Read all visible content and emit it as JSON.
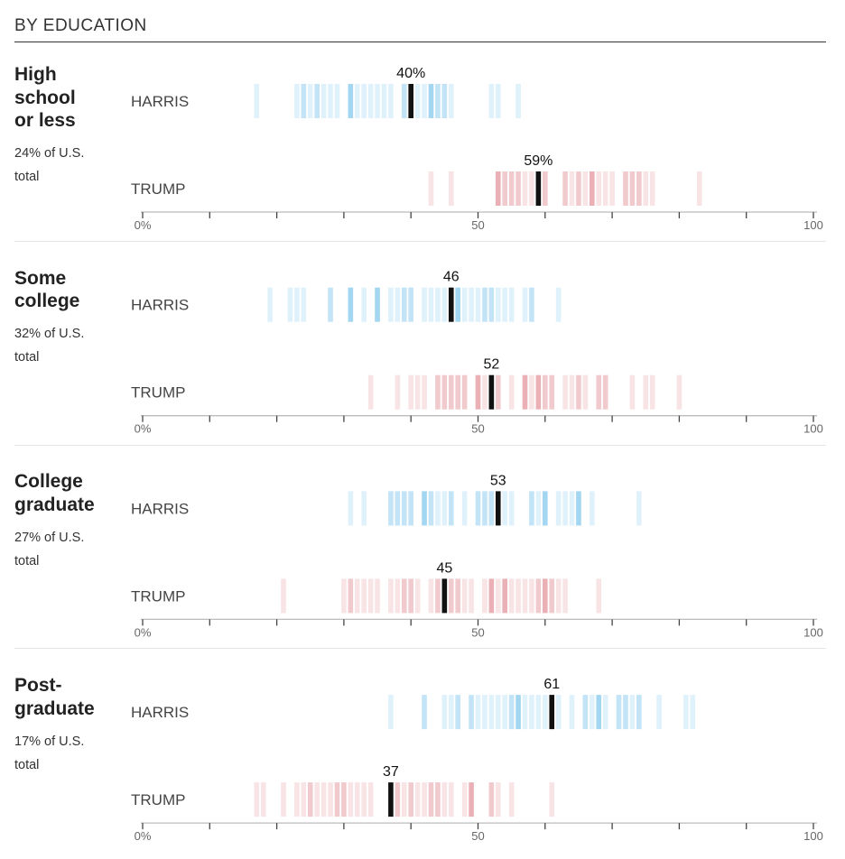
{
  "title": "BY EDUCATION",
  "colors": {
    "harris": "#78c3eb",
    "trump": "#e08a92",
    "highlight": "#111111",
    "axis": "#bbbbbb"
  },
  "chart_data": {
    "type": "strip",
    "title": "BY EDUCATION",
    "xlim": [
      0,
      100
    ],
    "xticks": [
      0,
      10,
      20,
      30,
      40,
      50,
      60,
      70,
      80,
      90,
      100
    ],
    "xtick_labels": [
      {
        "value": 0,
        "label": "0%"
      },
      {
        "value": 50,
        "label": "50"
      },
      {
        "value": 100,
        "label": "100"
      }
    ],
    "groups": [
      {
        "label_lines": [
          "High",
          "school",
          "or less"
        ],
        "share_lines": [
          "24% of U.S.",
          "total"
        ],
        "series": [
          {
            "name": "HARRIS",
            "value": 40,
            "value_label": "40%",
            "bars": [
              [
                17,
                1
              ],
              [
                23,
                1
              ],
              [
                24,
                2
              ],
              [
                25,
                1
              ],
              [
                26,
                2
              ],
              [
                27,
                1
              ],
              [
                28,
                1
              ],
              [
                29,
                1
              ],
              [
                31,
                3
              ],
              [
                32,
                1
              ],
              [
                33,
                1
              ],
              [
                34,
                1
              ],
              [
                35,
                1
              ],
              [
                36,
                1
              ],
              [
                37,
                1
              ],
              [
                39,
                2
              ],
              [
                41,
                1
              ],
              [
                42,
                1
              ],
              [
                43,
                3
              ],
              [
                44,
                2
              ],
              [
                45,
                2
              ],
              [
                46,
                1
              ],
              [
                52,
                1
              ],
              [
                53,
                1
              ],
              [
                56,
                1
              ]
            ]
          },
          {
            "name": "TRUMP",
            "value": 59,
            "value_label": "59%",
            "bars": [
              [
                43,
                1
              ],
              [
                46,
                1
              ],
              [
                53,
                3
              ],
              [
                54,
                2
              ],
              [
                55,
                2
              ],
              [
                56,
                2
              ],
              [
                57,
                1
              ],
              [
                58,
                1
              ],
              [
                60,
                2
              ],
              [
                63,
                2
              ],
              [
                64,
                1
              ],
              [
                65,
                2
              ],
              [
                66,
                1
              ],
              [
                67,
                3
              ],
              [
                68,
                1
              ],
              [
                69,
                1
              ],
              [
                70,
                1
              ],
              [
                72,
                2
              ],
              [
                73,
                2
              ],
              [
                74,
                2
              ],
              [
                75,
                1
              ],
              [
                76,
                1
              ],
              [
                83,
                1
              ]
            ]
          }
        ]
      },
      {
        "label_lines": [
          "Some",
          "college"
        ],
        "share_lines": [
          "32% of U.S.",
          "total"
        ],
        "series": [
          {
            "name": "HARRIS",
            "value": 46,
            "value_label": "46",
            "bars": [
              [
                19,
                1
              ],
              [
                22,
                1
              ],
              [
                23,
                1
              ],
              [
                24,
                1
              ],
              [
                28,
                2
              ],
              [
                31,
                3
              ],
              [
                33,
                1
              ],
              [
                35,
                3
              ],
              [
                37,
                1
              ],
              [
                38,
                1
              ],
              [
                39,
                2
              ],
              [
                40,
                2
              ],
              [
                42,
                1
              ],
              [
                43,
                1
              ],
              [
                44,
                1
              ],
              [
                45,
                1
              ],
              [
                47,
                3
              ],
              [
                48,
                1
              ],
              [
                49,
                1
              ],
              [
                50,
                1
              ],
              [
                51,
                2
              ],
              [
                52,
                2
              ],
              [
                53,
                1
              ],
              [
                54,
                1
              ],
              [
                55,
                1
              ],
              [
                57,
                1
              ],
              [
                58,
                2
              ],
              [
                62,
                1
              ]
            ]
          },
          {
            "name": "TRUMP",
            "value": 52,
            "value_label": "52",
            "bars": [
              [
                34,
                1
              ],
              [
                38,
                1
              ],
              [
                40,
                1
              ],
              [
                41,
                1
              ],
              [
                42,
                1
              ],
              [
                44,
                2
              ],
              [
                45,
                2
              ],
              [
                46,
                2
              ],
              [
                47,
                2
              ],
              [
                48,
                2
              ],
              [
                50,
                3
              ],
              [
                51,
                1
              ],
              [
                53,
                2
              ],
              [
                55,
                1
              ],
              [
                57,
                3
              ],
              [
                58,
                1
              ],
              [
                59,
                3
              ],
              [
                60,
                2
              ],
              [
                61,
                2
              ],
              [
                63,
                1
              ],
              [
                64,
                1
              ],
              [
                65,
                2
              ],
              [
                66,
                1
              ],
              [
                68,
                2
              ],
              [
                69,
                2
              ],
              [
                73,
                1
              ],
              [
                75,
                1
              ],
              [
                76,
                1
              ],
              [
                80,
                1
              ]
            ]
          }
        ]
      },
      {
        "label_lines": [
          "College",
          "graduate"
        ],
        "share_lines": [
          "27% of U.S.",
          "total"
        ],
        "series": [
          {
            "name": "HARRIS",
            "value": 53,
            "value_label": "53",
            "bars": [
              [
                31,
                1
              ],
              [
                33,
                1
              ],
              [
                37,
                2
              ],
              [
                38,
                2
              ],
              [
                39,
                2
              ],
              [
                40,
                2
              ],
              [
                42,
                3
              ],
              [
                43,
                2
              ],
              [
                44,
                1
              ],
              [
                45,
                1
              ],
              [
                46,
                2
              ],
              [
                48,
                1
              ],
              [
                50,
                2
              ],
              [
                51,
                2
              ],
              [
                52,
                2
              ],
              [
                54,
                1
              ],
              [
                55,
                1
              ],
              [
                58,
                2
              ],
              [
                59,
                1
              ],
              [
                60,
                3
              ],
              [
                62,
                1
              ],
              [
                63,
                1
              ],
              [
                64,
                1
              ],
              [
                65,
                3
              ],
              [
                67,
                1
              ],
              [
                74,
                1
              ]
            ]
          },
          {
            "name": "TRUMP",
            "value": 45,
            "value_label": "45",
            "bars": [
              [
                21,
                1
              ],
              [
                30,
                1
              ],
              [
                31,
                2
              ],
              [
                32,
                1
              ],
              [
                33,
                1
              ],
              [
                34,
                1
              ],
              [
                35,
                1
              ],
              [
                37,
                1
              ],
              [
                38,
                1
              ],
              [
                39,
                2
              ],
              [
                40,
                2
              ],
              [
                41,
                1
              ],
              [
                43,
                1
              ],
              [
                44,
                2
              ],
              [
                46,
                2
              ],
              [
                47,
                2
              ],
              [
                48,
                1
              ],
              [
                49,
                1
              ],
              [
                51,
                1
              ],
              [
                52,
                3
              ],
              [
                53,
                1
              ],
              [
                54,
                3
              ],
              [
                55,
                1
              ],
              [
                56,
                1
              ],
              [
                57,
                1
              ],
              [
                58,
                1
              ],
              [
                59,
                2
              ],
              [
                60,
                3
              ],
              [
                61,
                2
              ],
              [
                62,
                1
              ],
              [
                63,
                1
              ],
              [
                68,
                1
              ]
            ]
          }
        ]
      },
      {
        "label_lines": [
          "Post-",
          "graduate"
        ],
        "share_lines": [
          "17% of U.S.",
          "total"
        ],
        "series": [
          {
            "name": "HARRIS",
            "value": 61,
            "value_label": "61",
            "bars": [
              [
                37,
                1
              ],
              [
                42,
                2
              ],
              [
                45,
                1
              ],
              [
                46,
                1
              ],
              [
                47,
                2
              ],
              [
                49,
                2
              ],
              [
                50,
                1
              ],
              [
                51,
                1
              ],
              [
                52,
                1
              ],
              [
                53,
                1
              ],
              [
                54,
                1
              ],
              [
                55,
                2
              ],
              [
                56,
                3
              ],
              [
                57,
                1
              ],
              [
                58,
                1
              ],
              [
                59,
                1
              ],
              [
                60,
                1
              ],
              [
                62,
                1
              ],
              [
                64,
                1
              ],
              [
                66,
                2
              ],
              [
                67,
                1
              ],
              [
                68,
                3
              ],
              [
                69,
                1
              ],
              [
                71,
                2
              ],
              [
                72,
                2
              ],
              [
                73,
                1
              ],
              [
                74,
                2
              ],
              [
                77,
                1
              ],
              [
                81,
                1
              ],
              [
                82,
                1
              ]
            ]
          },
          {
            "name": "TRUMP",
            "value": 37,
            "value_label": "37",
            "bars": [
              [
                17,
                1
              ],
              [
                18,
                1
              ],
              [
                21,
                1
              ],
              [
                23,
                1
              ],
              [
                24,
                1
              ],
              [
                25,
                2
              ],
              [
                26,
                1
              ],
              [
                27,
                1
              ],
              [
                28,
                1
              ],
              [
                29,
                2
              ],
              [
                30,
                2
              ],
              [
                31,
                1
              ],
              [
                32,
                1
              ],
              [
                33,
                1
              ],
              [
                34,
                1
              ],
              [
                38,
                2
              ],
              [
                39,
                1
              ],
              [
                40,
                2
              ],
              [
                41,
                1
              ],
              [
                42,
                1
              ],
              [
                43,
                2
              ],
              [
                44,
                2
              ],
              [
                45,
                1
              ],
              [
                46,
                1
              ],
              [
                48,
                1
              ],
              [
                49,
                3
              ],
              [
                52,
                2
              ],
              [
                53,
                1
              ],
              [
                55,
                1
              ],
              [
                61,
                1
              ]
            ]
          }
        ]
      }
    ]
  }
}
